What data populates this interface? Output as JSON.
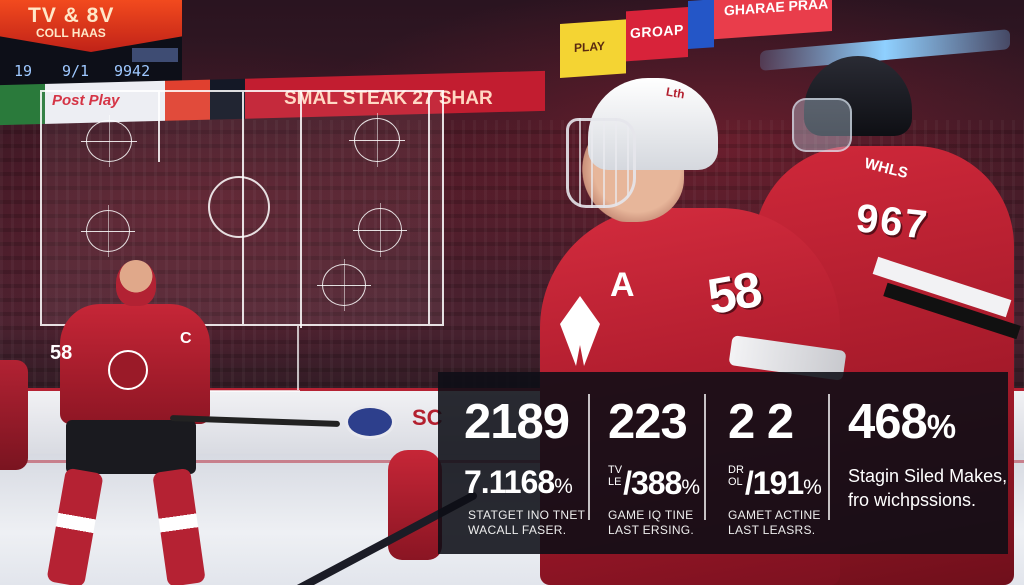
{
  "scoreboard": {
    "title": "TV & 8V",
    "subtitle": "COLL HAAS",
    "numbers": [
      "19",
      "9/1",
      "9942"
    ]
  },
  "ribbon": {
    "brand": "Post Play",
    "banner": "SMAL STEAK 27 SHAR"
  },
  "top_banner": {
    "yellow": "PLAY",
    "red": "GROAP",
    "white": "GHARAE PRAA"
  },
  "players": {
    "left": {
      "letter": "C",
      "number": "58"
    },
    "main": {
      "helmet": "Lth",
      "letter": "A",
      "number": "58"
    },
    "right": {
      "name": "WHLS",
      "number": "967"
    }
  },
  "boards": {
    "ad_text": "SC"
  },
  "stats": [
    {
      "big": "2189",
      "mid": "7.1168",
      "mid_pct": "%",
      "mid_prefix": "",
      "sub": "STATGET INO TNET\nWACALL FASER."
    },
    {
      "big": "223",
      "mid": "/388",
      "mid_pct": "%",
      "mid_prefix": "TV\nLE",
      "sub": "GAME IQ TINE\nLAST ERSING."
    },
    {
      "big": "2 2",
      "mid": "/191",
      "mid_pct": "%",
      "mid_prefix": "DR\nOL",
      "sub": "GAMET ACTINE\nLAST LEASRS."
    },
    {
      "big": "468",
      "big_pct": "%",
      "desc": "Stagin Siled Makes,\nfro wichpssions."
    }
  ]
}
